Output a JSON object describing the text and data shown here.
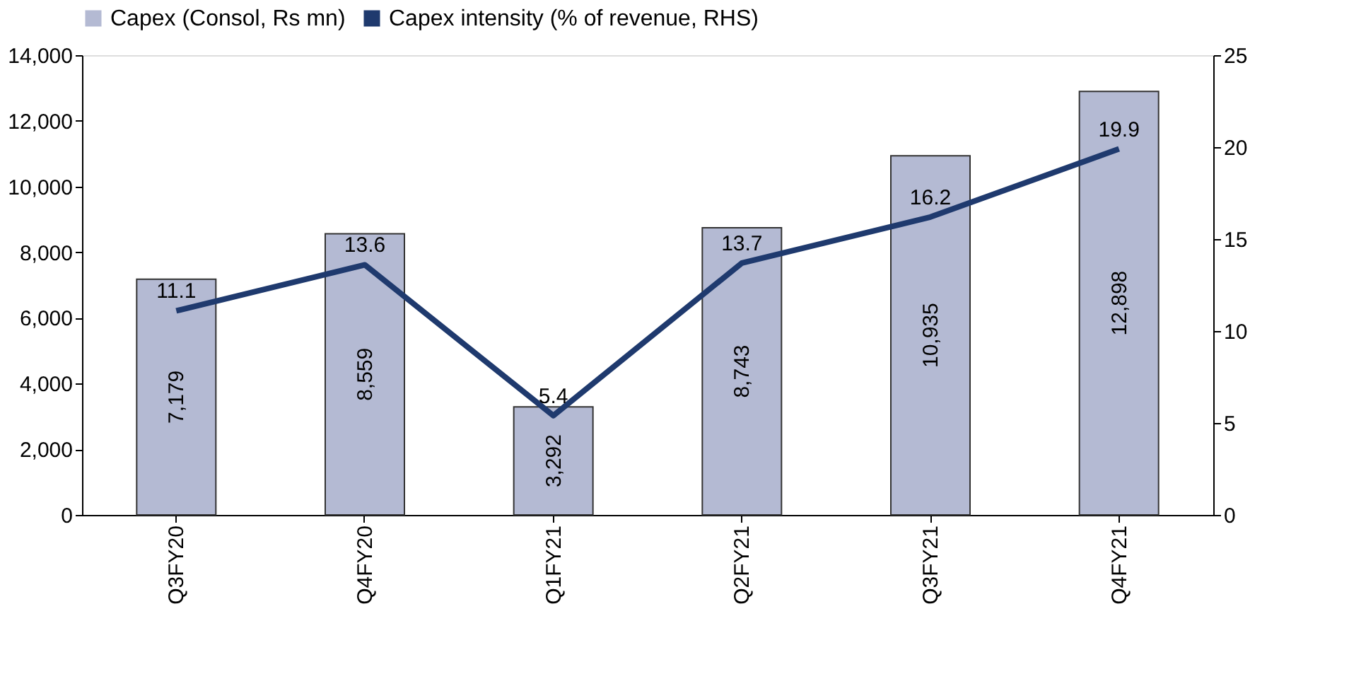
{
  "chart_data": {
    "type": "bar",
    "categories": [
      "Q3FY20",
      "Q4FY20",
      "Q1FY21",
      "Q2FY21",
      "Q3FY21",
      "Q4FY21"
    ],
    "series": [
      {
        "name": "Capex (Consol, Rs mn)",
        "color": "#b4bad3",
        "values": [
          7179,
          8559,
          3292,
          8743,
          10935,
          12898
        ],
        "value_labels": [
          "7,179",
          "8,559",
          "3,292",
          "8,743",
          "10,935",
          "12,898"
        ]
      },
      {
        "name": "Capex intensity (% of revenue, RHS)",
        "type": "line",
        "axis": "y2",
        "color": "#1f3a6e",
        "values": [
          11.1,
          13.6,
          5.4,
          13.7,
          16.2,
          19.9
        ],
        "value_labels": [
          "11.1",
          "13.6",
          "5.4",
          "13.7",
          "16.2",
          "19.9"
        ]
      }
    ],
    "ylim": [
      0,
      14000
    ],
    "yticks": [
      {
        "value": 0,
        "label": "0"
      },
      {
        "value": 2000,
        "label": "2,000"
      },
      {
        "value": 4000,
        "label": "4,000"
      },
      {
        "value": 6000,
        "label": "6,000"
      },
      {
        "value": 8000,
        "label": "8,000"
      },
      {
        "value": 10000,
        "label": "10,000"
      },
      {
        "value": 12000,
        "label": "12,000"
      },
      {
        "value": 14000,
        "label": "14,000"
      }
    ],
    "y2lim": [
      0,
      25
    ],
    "y2ticks": [
      0,
      5,
      10,
      15,
      20,
      25
    ],
    "legend": "top",
    "grid": false,
    "marker": "none",
    "line_style": "solid"
  }
}
